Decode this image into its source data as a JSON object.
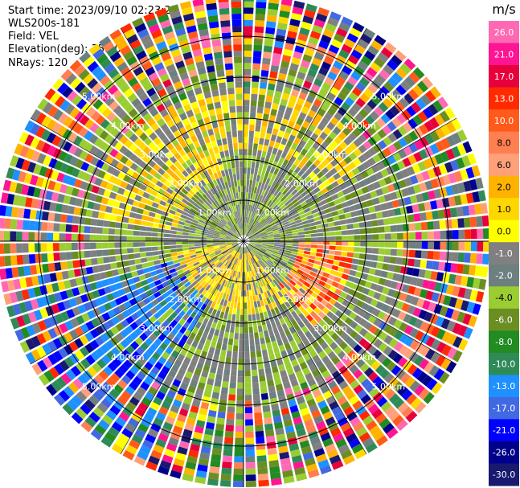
{
  "header": {
    "start_time": "Start time: 2023/09/10 02:23:24",
    "instrument": "WLS200s-181",
    "field": "Field: VEL",
    "elevation": "Elevation(deg): 35.30",
    "nrays": "NRays: 120"
  },
  "chart_data": {
    "type": "heatmap",
    "projection": "polar-ppi",
    "n_rays": 120,
    "max_range_km": 6.0,
    "range_rings_km": [
      1.0,
      2.0,
      3.0,
      4.0,
      5.0
    ],
    "range_labels": [
      "1.00km",
      "2.00km",
      "3.00km",
      "4.00km",
      "5.00km"
    ],
    "colorbar": {
      "unit": "m/s",
      "ticks": [
        "26.0",
        "21.0",
        "17.0",
        "13.0",
        "10.0",
        "8.0",
        "6.0",
        "2.0",
        "1.0",
        "0.0",
        "-1.0",
        "-2.0",
        "-4.0",
        "-6.0",
        "-8.0",
        "-10.0",
        "-13.0",
        "-17.0",
        "-21.0",
        "-26.0",
        "-30.0"
      ],
      "colors": [
        "#ff69b4",
        "#ff1493",
        "#e8003c",
        "#ff2a00",
        "#ff5a1a",
        "#ff7f50",
        "#ffa07a",
        "#ffb200",
        "#ffd700",
        "#ffff00",
        "#808080",
        "#6e7f80",
        "#9acd32",
        "#6b8e23",
        "#228b22",
        "#2e8b57",
        "#1e90ff",
        "#4169e1",
        "#0000ff",
        "#00008b",
        "#191970"
      ]
    },
    "grid": true
  }
}
